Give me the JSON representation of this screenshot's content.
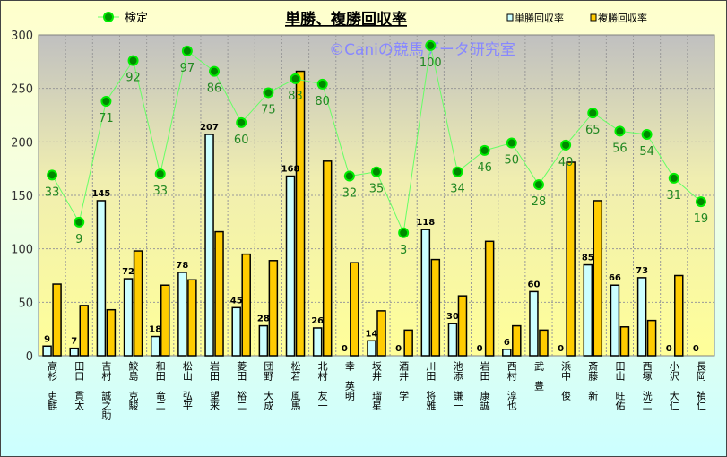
{
  "chart_data": {
    "type": "bar",
    "title": "単勝、複勝回収率",
    "watermark": "©Caniの競馬データ研究室",
    "ylim": [
      0,
      300
    ],
    "yticks": [
      0,
      50,
      100,
      150,
      200,
      250,
      300
    ],
    "grid": true,
    "legend": [
      "検定",
      "単勝回収率",
      "複勝回収率"
    ],
    "categories": [
      "高杉 吏麒",
      "田口 貫太",
      "吉村 誠之助",
      "鮫島 克駿",
      "和田 竜二",
      "松山 弘平",
      "岩田 望来",
      "菱田 裕二",
      "団野 大成",
      "松若 風馬",
      "北村 友一",
      "幸 英明",
      "坂井 瑠星",
      "酒井 学",
      "川田 将雅",
      "池添 謙一",
      "岩田 康誠",
      "西村 淳也",
      "武 豊",
      "浜中 俊",
      "斎藤 新",
      "田山 旺佑",
      "西塚 洸二",
      "小沢 大仁",
      "長岡 禎仁"
    ],
    "series": [
      {
        "name": "単勝回収率",
        "type": "bar",
        "color": "#ccffff",
        "values": [
          9,
          7,
          145,
          72,
          18,
          78,
          207,
          45,
          28,
          168,
          26,
          0,
          14,
          0,
          118,
          30,
          0,
          6,
          60,
          0,
          85,
          66,
          73,
          0,
          0
        ]
      },
      {
        "name": "複勝回収率",
        "type": "bar",
        "color": "#ffcc00",
        "values": [
          67,
          47,
          43,
          98,
          66,
          71,
          116,
          95,
          89,
          266,
          182,
          87,
          42,
          24,
          90,
          56,
          107,
          28,
          24,
          181,
          145,
          27,
          33,
          75,
          0
        ]
      },
      {
        "name": "検定",
        "type": "line",
        "color": "#00cc00",
        "values": [
          169,
          125,
          238,
          276,
          170,
          285,
          266,
          218,
          246,
          259,
          254,
          168,
          172,
          115,
          290,
          172,
          192,
          199,
          160,
          197,
          227,
          210,
          207,
          166,
          144
        ],
        "labels": [
          33,
          9,
          71,
          92,
          33,
          97,
          86,
          60,
          75,
          83,
          80,
          32,
          35,
          3,
          100,
          34,
          46,
          50,
          28,
          40,
          65,
          56,
          54,
          31,
          19
        ]
      }
    ]
  }
}
